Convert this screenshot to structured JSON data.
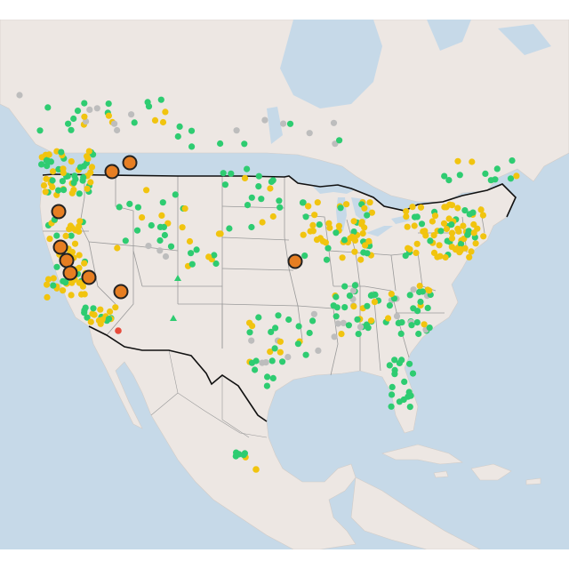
{
  "map": {
    "colors": {
      "water": "#c6d9e8",
      "land": "#ede7e3",
      "land_edge": "#d2ccc7",
      "us_border": "#111111",
      "state_lines": "#9a9a9a",
      "good": "#2ecc71",
      "moderate": "#f1c40f",
      "unhealthy_sensitive": "#e67e22",
      "unhealthy": "#e74c3c",
      "no_data": "#bdbdbd",
      "marker_outline": "#222222"
    },
    "icons": {
      "large_marker": "circle-outlined-icon",
      "small_marker": "circle-dot-icon",
      "triangle_marker": "triangle-icon"
    }
  }
}
